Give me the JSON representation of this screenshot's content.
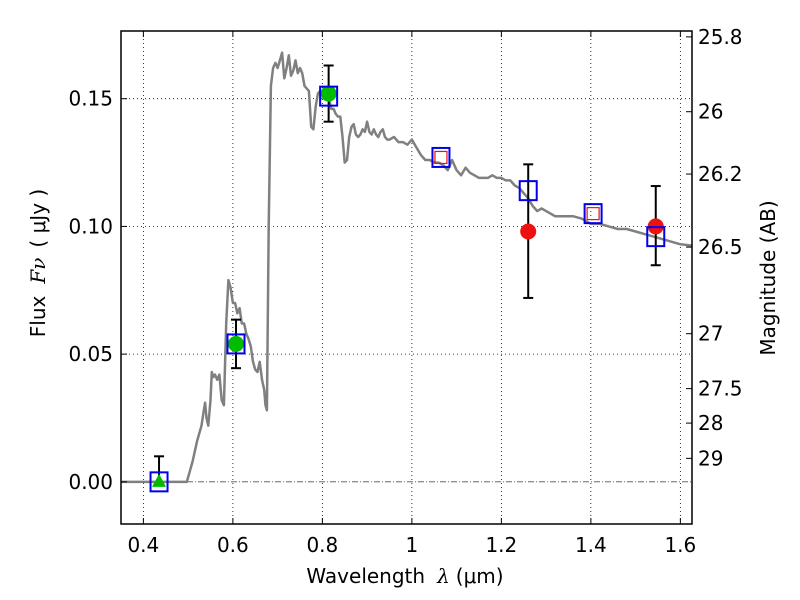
{
  "chart_data": {
    "type": "line",
    "title": "",
    "xlabel": "Wavelength",
    "xlabel_symbol": "λ",
    "xlabel_unit": "(μm)",
    "ylabel": "Flux",
    "ylabel_symbol": "Fν",
    "ylabel_unit": "( μJy )",
    "y2label": "Magnitude (AB)",
    "xlim": [
      0.35,
      1.626
    ],
    "ylim": [
      -0.0165,
      0.1765
    ],
    "grid": true,
    "zero_line": true,
    "x_ticks": [
      {
        "value": 0.4,
        "label": "0.4"
      },
      {
        "value": 0.6,
        "label": "0.6"
      },
      {
        "value": 0.8,
        "label": "0.8"
      },
      {
        "value": 1.0,
        "label": "1"
      },
      {
        "value": 1.2,
        "label": "1.2"
      },
      {
        "value": 1.4,
        "label": "1.4"
      },
      {
        "value": 1.6,
        "label": "1.6"
      }
    ],
    "y_ticks": [
      {
        "value": 0.0,
        "label": "0.00"
      },
      {
        "value": 0.05,
        "label": "0.05"
      },
      {
        "value": 0.1,
        "label": "0.10"
      },
      {
        "value": 0.15,
        "label": "0.15"
      }
    ],
    "y2_ticks": [
      {
        "flux": 0.1742,
        "label": "25.8"
      },
      {
        "flux": 0.1449,
        "label": "26"
      },
      {
        "flux": 0.1205,
        "label": "26.2"
      },
      {
        "flux": 0.0919,
        "label": "26.5"
      },
      {
        "flux": 0.058,
        "label": "27"
      },
      {
        "flux": 0.0365,
        "label": "27.5"
      },
      {
        "flux": 0.023,
        "label": "28"
      },
      {
        "flux": 0.0092,
        "label": "29"
      }
    ],
    "series": [
      {
        "name": "model-spectrum",
        "kind": "line",
        "color": "#808080",
        "x": [
          0.35,
          0.4,
          0.45,
          0.497,
          0.502,
          0.51,
          0.52,
          0.53,
          0.535,
          0.538,
          0.541,
          0.545,
          0.55,
          0.553,
          0.556,
          0.56,
          0.565,
          0.57,
          0.575,
          0.58,
          0.585,
          0.59,
          0.595,
          0.6,
          0.605,
          0.61,
          0.615,
          0.62,
          0.625,
          0.63,
          0.635,
          0.64,
          0.645,
          0.65,
          0.655,
          0.66,
          0.665,
          0.67,
          0.673,
          0.676,
          0.68,
          0.685,
          0.69,
          0.695,
          0.7,
          0.705,
          0.71,
          0.715,
          0.72,
          0.725,
          0.73,
          0.735,
          0.74,
          0.745,
          0.75,
          0.755,
          0.76,
          0.765,
          0.77,
          0.775,
          0.78,
          0.785,
          0.79,
          0.795,
          0.8,
          0.805,
          0.81,
          0.815,
          0.82,
          0.825,
          0.83,
          0.835,
          0.84,
          0.845,
          0.85,
          0.855,
          0.86,
          0.865,
          0.87,
          0.875,
          0.88,
          0.885,
          0.89,
          0.895,
          0.9,
          0.905,
          0.91,
          0.915,
          0.92,
          0.925,
          0.93,
          0.935,
          0.94,
          0.945,
          0.95,
          0.96,
          0.97,
          0.98,
          0.99,
          1.0,
          1.01,
          1.02,
          1.03,
          1.04,
          1.05,
          1.06,
          1.07,
          1.08,
          1.09,
          1.1,
          1.11,
          1.12,
          1.13,
          1.14,
          1.15,
          1.16,
          1.17,
          1.18,
          1.19,
          1.2,
          1.21,
          1.22,
          1.23,
          1.24,
          1.25,
          1.26,
          1.27,
          1.28,
          1.29,
          1.3,
          1.32,
          1.34,
          1.36,
          1.38,
          1.4,
          1.42,
          1.44,
          1.46,
          1.48,
          1.5,
          1.52,
          1.54,
          1.56,
          1.58,
          1.6,
          1.626
        ],
        "y": [
          0.0,
          0.0,
          0.0,
          0.0,
          0.003,
          0.008,
          0.016,
          0.022,
          0.028,
          0.031,
          0.025,
          0.022,
          0.032,
          0.043,
          0.041,
          0.042,
          0.04,
          0.042,
          0.032,
          0.03,
          0.062,
          0.079,
          0.076,
          0.07,
          0.07,
          0.066,
          0.068,
          0.062,
          0.062,
          0.058,
          0.056,
          0.053,
          0.047,
          0.044,
          0.043,
          0.047,
          0.04,
          0.036,
          0.03,
          0.028,
          0.1,
          0.155,
          0.162,
          0.164,
          0.162,
          0.165,
          0.168,
          0.158,
          0.162,
          0.167,
          0.159,
          0.161,
          0.165,
          0.16,
          0.162,
          0.16,
          0.155,
          0.154,
          0.153,
          0.139,
          0.138,
          0.147,
          0.152,
          0.153,
          0.152,
          0.15,
          0.151,
          0.15,
          0.146,
          0.146,
          0.144,
          0.143,
          0.143,
          0.135,
          0.125,
          0.126,
          0.135,
          0.139,
          0.14,
          0.136,
          0.135,
          0.136,
          0.138,
          0.137,
          0.141,
          0.137,
          0.136,
          0.138,
          0.136,
          0.135,
          0.137,
          0.138,
          0.135,
          0.134,
          0.134,
          0.135,
          0.133,
          0.133,
          0.132,
          0.134,
          0.131,
          0.128,
          0.126,
          0.126,
          0.125,
          0.125,
          0.124,
          0.122,
          0.126,
          0.122,
          0.12,
          0.123,
          0.121,
          0.12,
          0.119,
          0.119,
          0.119,
          0.12,
          0.119,
          0.119,
          0.118,
          0.118,
          0.116,
          0.115,
          0.113,
          0.111,
          0.108,
          0.106,
          0.107,
          0.106,
          0.104,
          0.104,
          0.104,
          0.103,
          0.101,
          0.101,
          0.1,
          0.099,
          0.099,
          0.098,
          0.097,
          0.096,
          0.095,
          0.094,
          0.093,
          0.0925
        ]
      },
      {
        "name": "model-photometry",
        "kind": "open-square",
        "color": "#0000ee",
        "x": [
          0.435,
          0.607,
          0.814,
          1.065,
          1.26,
          1.405,
          1.545
        ],
        "y": [
          0.0,
          0.054,
          0.151,
          0.127,
          0.114,
          0.105,
          0.096
        ]
      },
      {
        "name": "detections-optical",
        "kind": "filled-circle",
        "color": "#00bb00",
        "x": [
          0.607,
          0.814
        ],
        "y": [
          0.054,
          0.152
        ],
        "err_low": [
          0.0445,
          0.141
        ],
        "err_high": [
          0.0635,
          0.163
        ]
      },
      {
        "name": "upper-limit",
        "kind": "filled-triangle",
        "color": "#00bb00",
        "x": [
          0.435
        ],
        "y": [
          0.0
        ],
        "err_low": [
          0.0
        ],
        "err_high": [
          0.01
        ]
      },
      {
        "name": "detections-nir",
        "kind": "filled-circle",
        "color": "#ee1111",
        "x": [
          1.26,
          1.545
        ],
        "y": [
          0.098,
          0.1
        ],
        "err_low": [
          0.072,
          0.0848
        ],
        "err_high": [
          0.1243,
          0.1158
        ]
      },
      {
        "name": "nir-model-inset",
        "kind": "small-open-square",
        "color": "#ee1111",
        "x": [
          1.065,
          1.405
        ],
        "y": [
          0.127,
          0.105
        ]
      }
    ]
  }
}
